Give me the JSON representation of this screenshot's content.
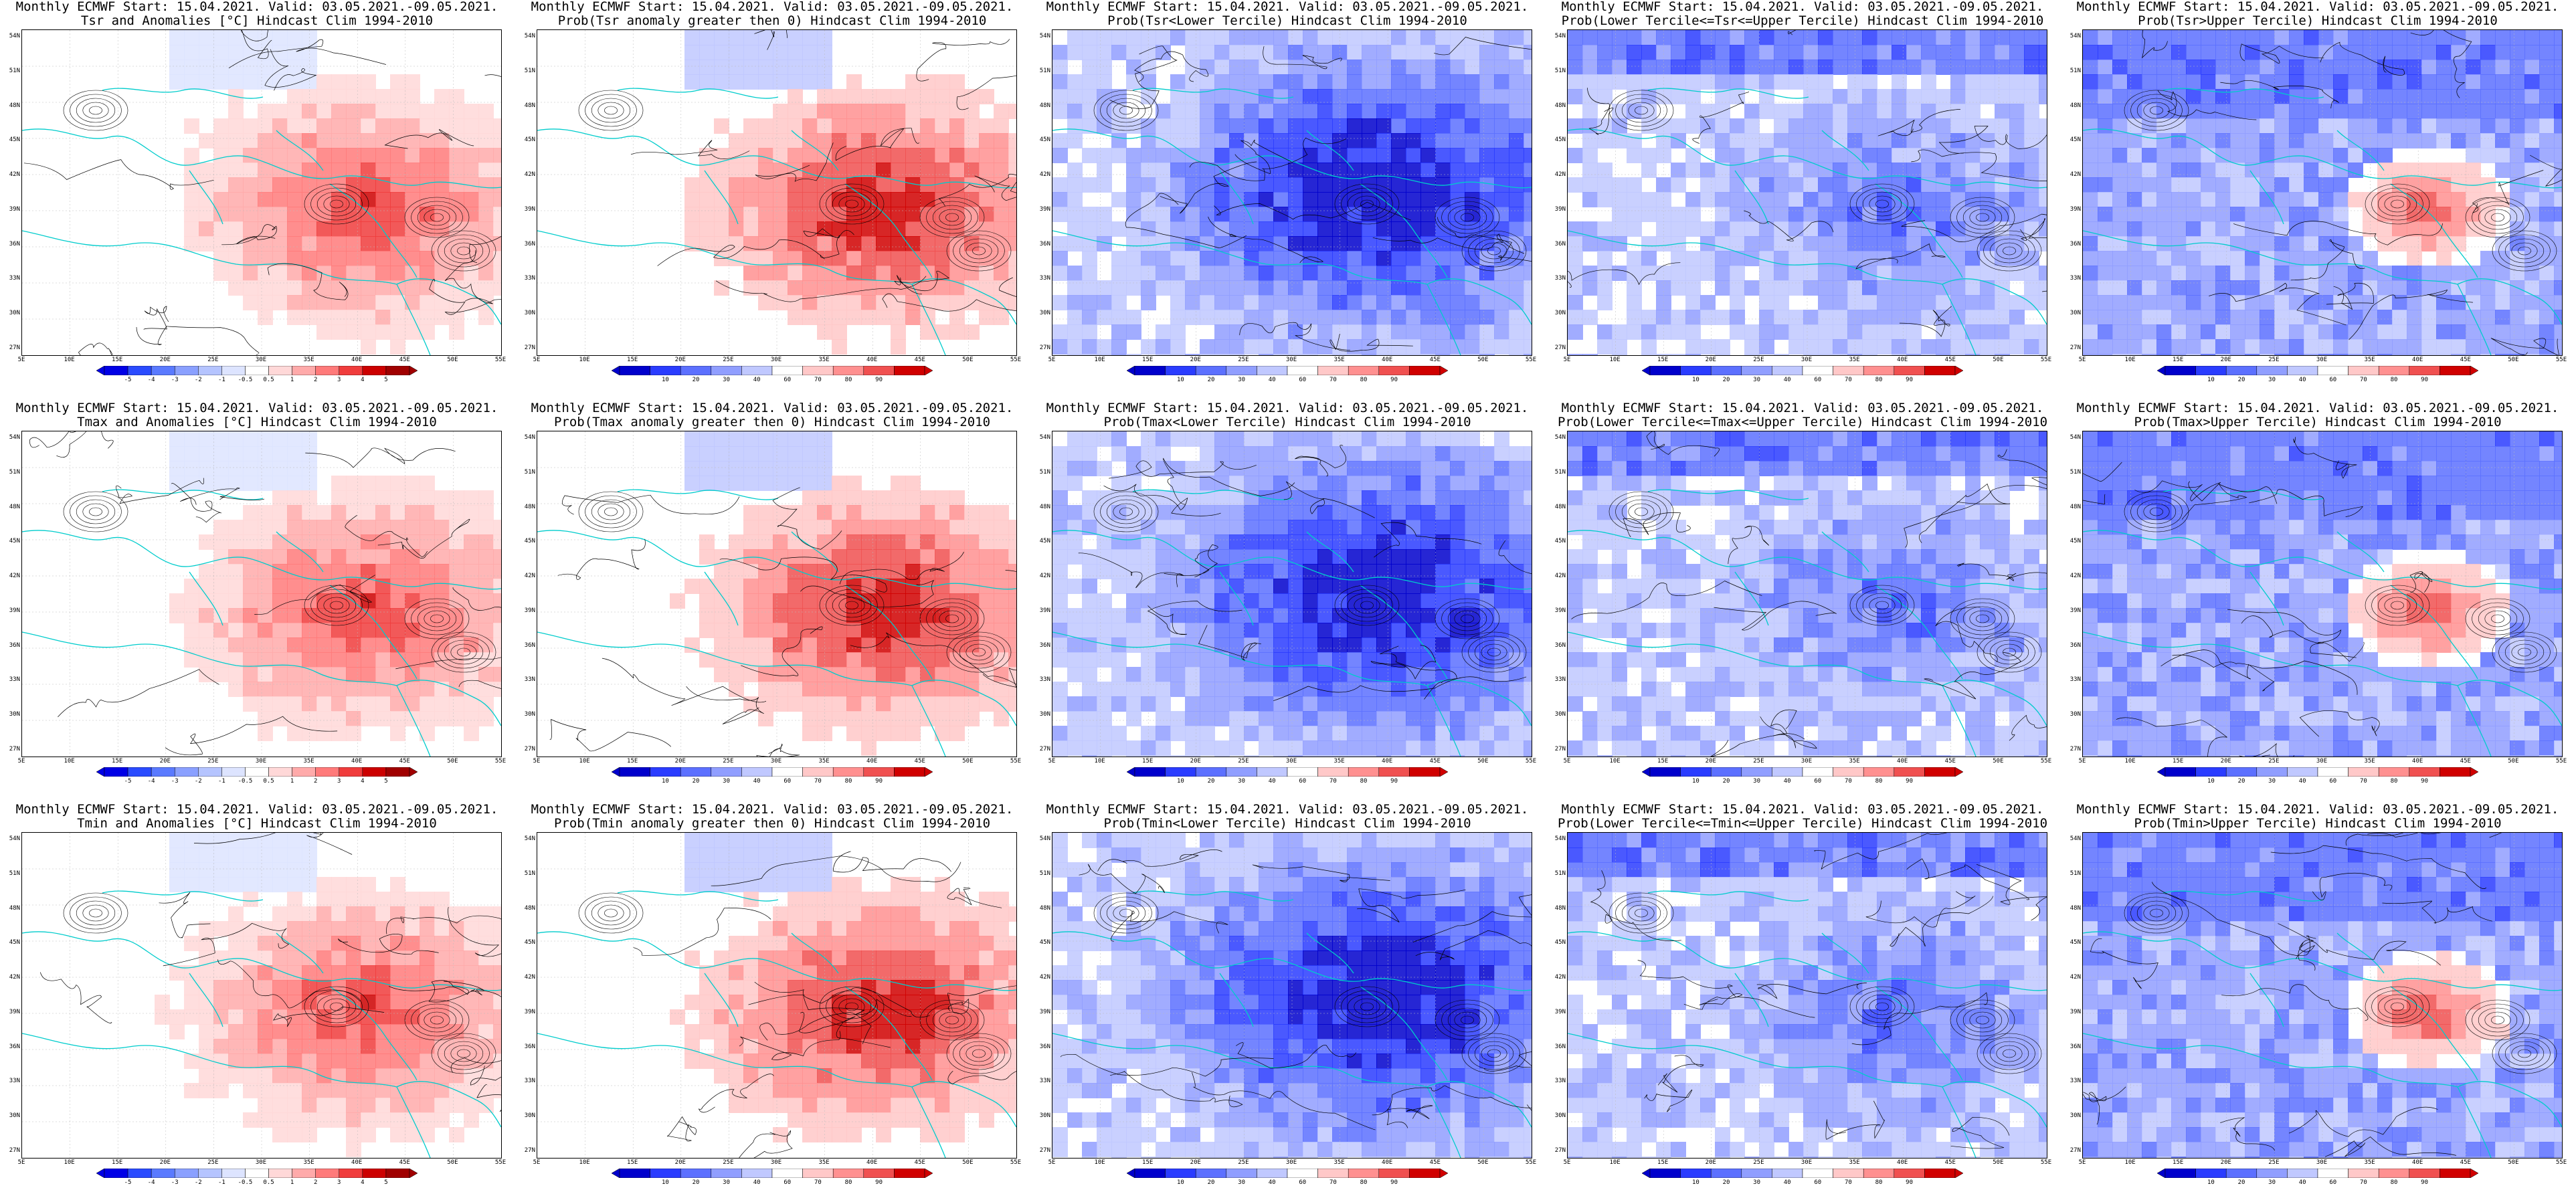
{
  "panels": [
    {
      "line1": "Monthly ECMWF Start: 15.04.2021. Valid: 03.05.2021.-09.05.2021.",
      "line2": "Tsr and Anomalies [°C] Hindcast Clim 1994-2010",
      "scheme": "anom",
      "pattern": "warm",
      "cbar": [
        "-5",
        "-4",
        "-3",
        "-2",
        "-1",
        "-0.5",
        "0.5",
        "1",
        "2",
        "3",
        "4",
        "5"
      ]
    },
    {
      "line1": "Monthly ECMWF Start: 15.04.2021. Valid: 03.05.2021.-09.05.2021.",
      "line2": "Prob(Tsr anomaly greater then 0) Hindcast Clim 1994-2010",
      "scheme": "prob",
      "pattern": "warm",
      "cbar": [
        "10",
        "20",
        "30",
        "40",
        "60",
        "70",
        "80",
        "90"
      ]
    },
    {
      "line1": "Monthly ECMWF Start: 15.04.2021. Valid: 03.05.2021.-09.05.2021.",
      "line2": "Prob(Tsr<Lower Tercile) Hindcast Clim 1994-2010",
      "scheme": "prob",
      "pattern": "cold",
      "cbar": [
        "10",
        "20",
        "30",
        "40",
        "60",
        "70",
        "80",
        "90"
      ]
    },
    {
      "line1": "Monthly ECMWF Start: 15.04.2021. Valid: 03.05.2021.-09.05.2021.",
      "line2": "Prob(Lower Tercile<=Tsr<=Upper Tercile) Hindcast Clim 1994-2010",
      "scheme": "prob",
      "pattern": "mid",
      "cbar": [
        "10",
        "20",
        "30",
        "40",
        "60",
        "70",
        "80",
        "90"
      ]
    },
    {
      "line1": "Monthly ECMWF Start: 15.04.2021. Valid: 03.05.2021.-09.05.2021.",
      "line2": "Prob(Tsr>Upper Tercile) Hindcast Clim 1994-2010",
      "scheme": "prob",
      "pattern": "upper",
      "cbar": [
        "10",
        "20",
        "30",
        "40",
        "60",
        "70",
        "80",
        "90"
      ]
    },
    {
      "line1": "Monthly ECMWF Start: 15.04.2021. Valid: 03.05.2021.-09.05.2021.",
      "line2": "Tmax and Anomalies [°C] Hindcast Clim 1994-2010",
      "scheme": "anom",
      "pattern": "warm",
      "cbar": [
        "-5",
        "-4",
        "-3",
        "-2",
        "-1",
        "-0.5",
        "0.5",
        "1",
        "2",
        "3",
        "4",
        "5"
      ]
    },
    {
      "line1": "Monthly ECMWF Start: 15.04.2021. Valid: 03.05.2021.-09.05.2021.",
      "line2": "Prob(Tmax anomaly greater then 0) Hindcast Clim 1994-2010",
      "scheme": "prob",
      "pattern": "warm",
      "cbar": [
        "10",
        "20",
        "30",
        "40",
        "60",
        "70",
        "80",
        "90"
      ]
    },
    {
      "line1": "Monthly ECMWF Start: 15.04.2021. Valid: 03.05.2021.-09.05.2021.",
      "line2": "Prob(Tmax<Lower Tercile) Hindcast Clim 1994-2010",
      "scheme": "prob",
      "pattern": "cold",
      "cbar": [
        "10",
        "20",
        "30",
        "40",
        "60",
        "70",
        "80",
        "90"
      ]
    },
    {
      "line1": "Monthly ECMWF Start: 15.04.2021. Valid: 03.05.2021.-09.05.2021.",
      "line2": "Prob(Lower Tercile<=Tmax<=Upper Tercile) Hindcast Clim 1994-2010",
      "scheme": "prob",
      "pattern": "mid",
      "cbar": [
        "10",
        "20",
        "30",
        "40",
        "60",
        "70",
        "80",
        "90"
      ]
    },
    {
      "line1": "Monthly ECMWF Start: 15.04.2021. Valid: 03.05.2021.-09.05.2021.",
      "line2": "Prob(Tmax>Upper Tercile) Hindcast Clim 1994-2010",
      "scheme": "prob",
      "pattern": "upper",
      "cbar": [
        "10",
        "20",
        "30",
        "40",
        "60",
        "70",
        "80",
        "90"
      ]
    },
    {
      "line1": "Monthly ECMWF Start: 15.04.2021. Valid: 03.05.2021.-09.05.2021.",
      "line2": "Tmin and Anomalies [°C] Hindcast Clim 1994-2010",
      "scheme": "anom",
      "pattern": "warm",
      "cbar": [
        "-5",
        "-4",
        "-3",
        "-2",
        "-1",
        "-0.5",
        "0.5",
        "1",
        "2",
        "3",
        "4",
        "5"
      ]
    },
    {
      "line1": "Monthly ECMWF Start: 15.04.2021. Valid: 03.05.2021.-09.05.2021.",
      "line2": "Prob(Tmin anomaly greater then 0) Hindcast Clim 1994-2010",
      "scheme": "prob",
      "pattern": "warm",
      "cbar": [
        "10",
        "20",
        "30",
        "40",
        "60",
        "70",
        "80",
        "90"
      ]
    },
    {
      "line1": "Monthly ECMWF Start: 15.04.2021. Valid: 03.05.2021.-09.05.2021.",
      "line2": "Prob(Tmin<Lower Tercile) Hindcast Clim 1994-2010",
      "scheme": "prob",
      "pattern": "cold",
      "cbar": [
        "10",
        "20",
        "30",
        "40",
        "60",
        "70",
        "80",
        "90"
      ]
    },
    {
      "line1": "Monthly ECMWF Start: 15.04.2021. Valid: 03.05.2021.-09.05.2021.",
      "line2": "Prob(Lower Tercile<=Tmin<=Upper Tercile) Hindcast Clim 1994-2010",
      "scheme": "prob",
      "pattern": "mid",
      "cbar": [
        "10",
        "20",
        "30",
        "40",
        "60",
        "70",
        "80",
        "90"
      ]
    },
    {
      "line1": "Monthly ECMWF Start: 15.04.2021. Valid: 03.05.2021.-09.05.2021.",
      "line2": "Prob(Tmin>Upper Tercile) Hindcast Clim 1994-2010",
      "scheme": "prob",
      "pattern": "upper",
      "cbar": [
        "10",
        "20",
        "30",
        "40",
        "60",
        "70",
        "80",
        "90"
      ]
    }
  ],
  "lat_labels": [
    "54N",
    "51N",
    "48N",
    "45N",
    "42N",
    "39N",
    "36N",
    "33N",
    "30N",
    "27N"
  ],
  "lon_labels": [
    "5E",
    "10E",
    "15E",
    "20E",
    "25E",
    "30E",
    "35E",
    "40E",
    "45E",
    "50E",
    "55E"
  ],
  "colors": {
    "coast": "#00cccc",
    "contour": "#000000",
    "anom_scale": [
      "#0000e6",
      "#2a4bff",
      "#5a7aff",
      "#8aa0ff",
      "#b5c4ff",
      "#dde4ff",
      "#ffffff",
      "#ffd8d8",
      "#ffaaaa",
      "#ff7a7a",
      "#f03c3c",
      "#cc0000",
      "#a00000"
    ],
    "prob_scale": [
      "#0000cc",
      "#2a3cff",
      "#5c70ff",
      "#909eff",
      "#c0c8ff",
      "#ffffff",
      "#ffc8c8",
      "#ff9090",
      "#f05050",
      "#d00000"
    ]
  }
}
